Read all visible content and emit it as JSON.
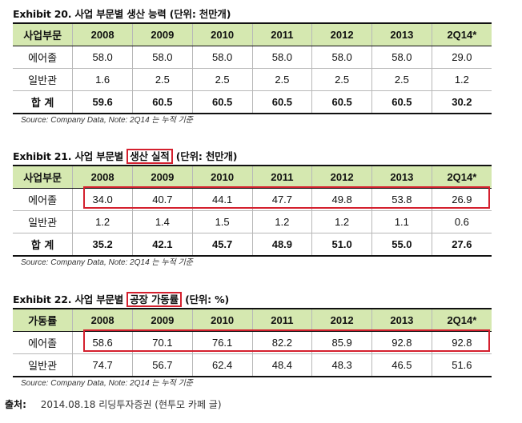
{
  "exhibit20": {
    "title": "Exhibit 20. 사업 부문별 생산 능력 (단위: 천만개)",
    "headers": [
      "사업부문",
      "2008",
      "2009",
      "2010",
      "2011",
      "2012",
      "2013",
      "2Q14*"
    ],
    "rows": [
      [
        "에어졸",
        "58.0",
        "58.0",
        "58.0",
        "58.0",
        "58.0",
        "58.0",
        "29.0"
      ],
      [
        "일반관",
        "1.6",
        "2.5",
        "2.5",
        "2.5",
        "2.5",
        "2.5",
        "1.2"
      ]
    ],
    "total": [
      "합 계",
      "59.6",
      "60.5",
      "60.5",
      "60.5",
      "60.5",
      "60.5",
      "30.2"
    ],
    "source": "Source: Company Data, Note: 2Q14 는 누적 기준"
  },
  "exhibit21": {
    "title_prefix": "Exhibit 21. 사업 부문별",
    "title_highlight": "생산 실적",
    "title_suffix": "(단위: 천만개)",
    "headers": [
      "사업부문",
      "2008",
      "2009",
      "2010",
      "2011",
      "2012",
      "2013",
      "2Q14*"
    ],
    "rows": [
      [
        "에어졸",
        "34.0",
        "40.7",
        "44.1",
        "47.7",
        "49.8",
        "53.8",
        "26.9"
      ],
      [
        "일반관",
        "1.2",
        "1.4",
        "1.5",
        "1.2",
        "1.2",
        "1.1",
        "0.6"
      ]
    ],
    "total": [
      "합 계",
      "35.2",
      "42.1",
      "45.7",
      "48.9",
      "51.0",
      "55.0",
      "27.6"
    ],
    "source": "Source: Company Data, Note: 2Q14 는 누적 기준"
  },
  "exhibit22": {
    "title_prefix": "Exhibit 22. 사업 부문별",
    "title_highlight": "공장 가동률",
    "title_suffix": "(단위: %)",
    "headers": [
      "가동률",
      "2008",
      "2009",
      "2010",
      "2011",
      "2012",
      "2013",
      "2Q14*"
    ],
    "rows": [
      [
        "에어졸",
        "58.6",
        "70.1",
        "76.1",
        "82.2",
        "85.9",
        "92.8",
        "92.8"
      ],
      [
        "일반관",
        "74.7",
        "56.7",
        "62.4",
        "48.4",
        "48.3",
        "46.5",
        "51.6"
      ]
    ],
    "source": "Source: Company Data, Note: 2Q14 는 누적 기준"
  },
  "footer": {
    "label": "출처:",
    "text": "2014.08.18 리딩투자증권 (현투모 카페 글)"
  },
  "colors": {
    "header_bg": "#d5e8b0",
    "highlight": "#d4202e"
  }
}
